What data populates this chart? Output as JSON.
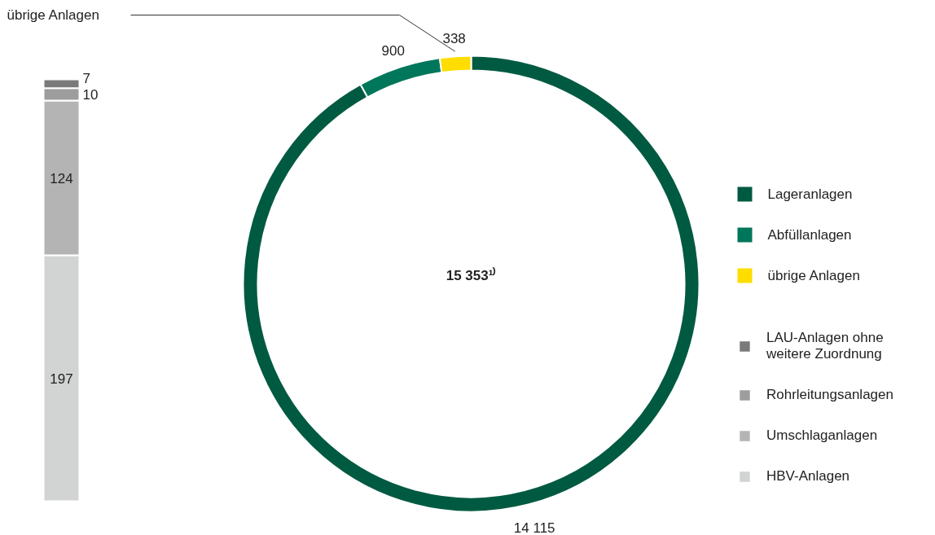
{
  "chart_data": [
    {
      "type": "bar",
      "stacked": true,
      "title": "übrige Anlagen",
      "categories": [
        null
      ],
      "data_labels": true,
      "legend": "right",
      "series": [
        {
          "name": "HBV-Anlagen",
          "color": "#d2d3d3",
          "values": [
            197
          ]
        },
        {
          "name": "Umschlaganlagen",
          "color": "#b4b4b5",
          "values": [
            124
          ]
        },
        {
          "name": "Rohrleitungsanlagen",
          "color": "#9d9d9d",
          "values": [
            10
          ]
        },
        {
          "name": "LAU-Anlagen ohne weitere Zuordnung",
          "color": "#7a7a7a",
          "values": [
            7
          ]
        }
      ]
    },
    {
      "type": "donut",
      "categories": [
        "Lageranlagen",
        "Abfüllanlagen",
        "übrige Anlagen"
      ],
      "values": [
        14115,
        900,
        338
      ],
      "colors": [
        "#005a41",
        "#00765a",
        "#ffdd00"
      ],
      "value_labels": [
        "14 115",
        "900",
        "338"
      ],
      "annotations": [
        "15 353¹⁾"
      ],
      "legend": "right"
    }
  ]
}
